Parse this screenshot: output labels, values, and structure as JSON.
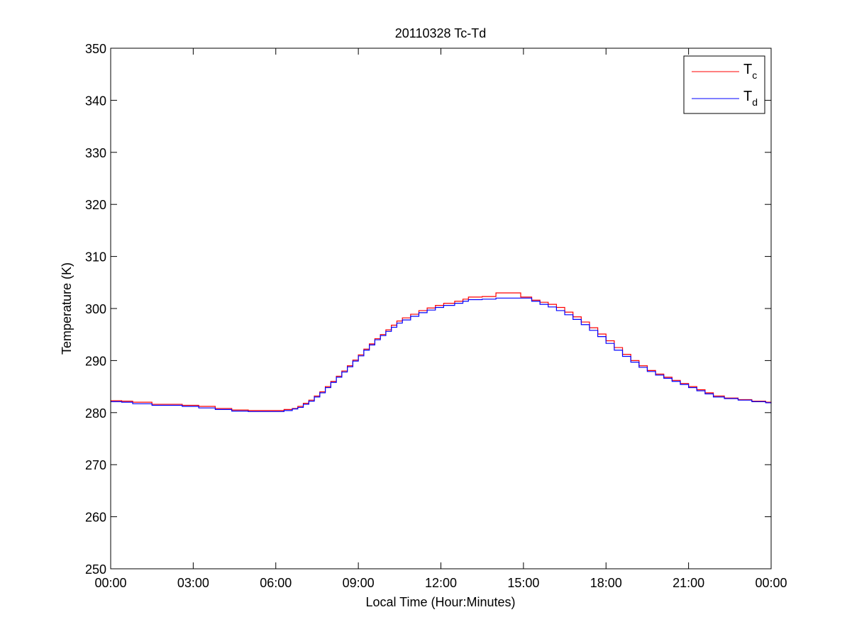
{
  "chart_data": {
    "type": "line",
    "title": "20110328 Tc-Td",
    "xlabel": "Local Time (Hour:Minutes)",
    "ylabel": "Temperature (K)",
    "xlim": [
      0,
      24
    ],
    "ylim": [
      250,
      350
    ],
    "x_ticks": [
      {
        "value": 0,
        "label": "00:00"
      },
      {
        "value": 3,
        "label": "03:00"
      },
      {
        "value": 6,
        "label": "06:00"
      },
      {
        "value": 9,
        "label": "09:00"
      },
      {
        "value": 12,
        "label": "12:00"
      },
      {
        "value": 15,
        "label": "15:00"
      },
      {
        "value": 18,
        "label": "18:00"
      },
      {
        "value": 21,
        "label": "21:00"
      },
      {
        "value": 24,
        "label": "00:00"
      }
    ],
    "y_ticks": [
      {
        "value": 250,
        "label": "250"
      },
      {
        "value": 260,
        "label": "260"
      },
      {
        "value": 270,
        "label": "270"
      },
      {
        "value": 280,
        "label": "280"
      },
      {
        "value": 290,
        "label": "290"
      },
      {
        "value": 300,
        "label": "300"
      },
      {
        "value": 310,
        "label": "310"
      },
      {
        "value": 320,
        "label": "320"
      },
      {
        "value": 330,
        "label": "330"
      },
      {
        "value": 340,
        "label": "340"
      },
      {
        "value": 350,
        "label": "350"
      }
    ],
    "grid": false,
    "legend_position": "top-right",
    "series": [
      {
        "name": "T",
        "subscript": "c",
        "color": "#ff0000",
        "step": true,
        "x": [
          0,
          0.4,
          0.8,
          1.5,
          2.6,
          3.2,
          3.8,
          4.4,
          5.0,
          6.0,
          6.3,
          6.6,
          6.8,
          7.0,
          7.2,
          7.4,
          7.6,
          7.8,
          8.0,
          8.2,
          8.4,
          8.6,
          8.8,
          9.0,
          9.2,
          9.4,
          9.6,
          9.8,
          10.0,
          10.2,
          10.4,
          10.6,
          10.9,
          11.2,
          11.5,
          11.8,
          12.1,
          12.5,
          12.8,
          13.0,
          13.5,
          14.0,
          14.9,
          15.3,
          15.6,
          15.9,
          16.2,
          16.5,
          16.8,
          17.1,
          17.4,
          17.7,
          18.0,
          18.3,
          18.6,
          18.9,
          19.2,
          19.5,
          19.8,
          20.1,
          20.4,
          20.7,
          21.0,
          21.3,
          21.6,
          21.9,
          22.3,
          22.8,
          23.3,
          23.8,
          24.0
        ],
        "y": [
          282.3,
          282.2,
          282.0,
          281.6,
          281.4,
          281.2,
          280.8,
          280.5,
          280.4,
          280.4,
          280.6,
          280.8,
          281.2,
          281.8,
          282.4,
          283.2,
          284.0,
          285.0,
          286.0,
          287.0,
          288.0,
          289.0,
          290.1,
          291.1,
          292.2,
          293.2,
          294.2,
          295.0,
          295.9,
          296.8,
          297.6,
          298.2,
          298.9,
          299.6,
          300.1,
          300.6,
          301.0,
          301.4,
          301.8,
          302.2,
          302.3,
          303.0,
          302.2,
          301.6,
          301.2,
          300.8,
          300.2,
          299.3,
          298.4,
          297.4,
          296.3,
          295.1,
          293.8,
          292.5,
          291.2,
          290.0,
          289.0,
          288.1,
          287.4,
          286.8,
          286.2,
          285.6,
          285.0,
          284.4,
          283.8,
          283.2,
          282.8,
          282.5,
          282.2,
          282.0,
          282.0
        ]
      },
      {
        "name": "T",
        "subscript": "d",
        "color": "#0000ff",
        "step": true,
        "x": [
          0,
          0.4,
          0.8,
          1.5,
          2.6,
          3.2,
          3.8,
          4.4,
          5.0,
          6.0,
          6.3,
          6.6,
          6.8,
          7.0,
          7.2,
          7.4,
          7.6,
          7.8,
          8.0,
          8.2,
          8.4,
          8.6,
          8.8,
          9.0,
          9.2,
          9.4,
          9.6,
          9.8,
          10.0,
          10.2,
          10.4,
          10.6,
          10.9,
          11.2,
          11.5,
          11.8,
          12.1,
          12.5,
          12.8,
          13.0,
          13.5,
          14.0,
          14.9,
          15.3,
          15.6,
          15.9,
          16.2,
          16.5,
          16.8,
          17.1,
          17.4,
          17.7,
          18.0,
          18.3,
          18.6,
          18.9,
          19.2,
          19.5,
          19.8,
          20.1,
          20.4,
          20.7,
          21.0,
          21.3,
          21.6,
          21.9,
          22.3,
          22.8,
          23.3,
          23.8,
          24.0
        ],
        "y": [
          282.1,
          282.0,
          281.7,
          281.4,
          281.2,
          280.9,
          280.6,
          280.3,
          280.2,
          280.2,
          280.4,
          280.7,
          281.0,
          281.6,
          282.2,
          283.0,
          283.8,
          284.8,
          285.8,
          286.8,
          287.8,
          288.8,
          289.9,
          290.9,
          292.0,
          293.0,
          294.0,
          294.8,
          295.6,
          296.4,
          297.2,
          297.8,
          298.5,
          299.2,
          299.7,
          300.2,
          300.6,
          301.0,
          301.4,
          301.7,
          301.8,
          302.0,
          302.0,
          301.4,
          300.8,
          300.3,
          299.6,
          298.8,
          297.9,
          296.9,
          295.8,
          294.6,
          293.3,
          292.0,
          290.8,
          289.7,
          288.7,
          287.9,
          287.2,
          286.6,
          286.0,
          285.4,
          284.8,
          284.2,
          283.6,
          283.0,
          282.7,
          282.4,
          282.1,
          281.9,
          281.8
        ]
      }
    ]
  }
}
